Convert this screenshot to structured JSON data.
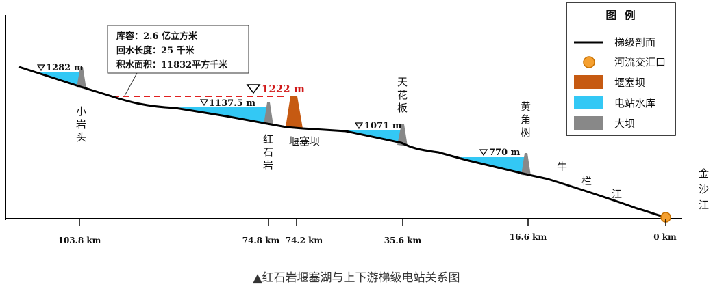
{
  "caption": "▲红石岩堰塞湖与上下游梯级电站关系图",
  "legend": {
    "title": "图  例",
    "items": [
      {
        "key": "profile",
        "label": "梯级剖面",
        "color": "#000000"
      },
      {
        "key": "confluence",
        "label": "河流交汇口",
        "color": "#f5a030"
      },
      {
        "key": "landslide",
        "label": "堰塞坝",
        "color": "#c65a12"
      },
      {
        "key": "reservoir",
        "label": "电站水库",
        "color": "#33c8f5"
      },
      {
        "key": "dam",
        "label": "大坝",
        "color": "#888888"
      }
    ]
  },
  "info_box": [
    "库容：2.6 亿立方米",
    "回水长度：25 千米",
    "积水面积：11832平方千米"
  ],
  "barrier_lake_level": "1222 m",
  "stations": [
    {
      "name": "小岩头",
      "level": "1282 m",
      "km": "103.8 km"
    },
    {
      "name": "红石岩",
      "level": "1137.5 m",
      "km": "74.8 km"
    },
    {
      "name": "天花板",
      "level": "1071 m",
      "km": "35.6 km"
    },
    {
      "name": "黄角树",
      "level": "770 m",
      "km": "16.6 km"
    }
  ],
  "landslide_dam": {
    "name": "堰塞坝",
    "km": "74.2 km"
  },
  "river_labels": {
    "niulan": "牛栏江",
    "jinsha": "金沙江"
  },
  "confluence_km": "0 km",
  "colors": {
    "reservoir": "#33c8f5",
    "dam": "#888888",
    "landslide": "#c65a12",
    "barrier_line": "#e02020",
    "confluence": "#f5a030"
  }
}
